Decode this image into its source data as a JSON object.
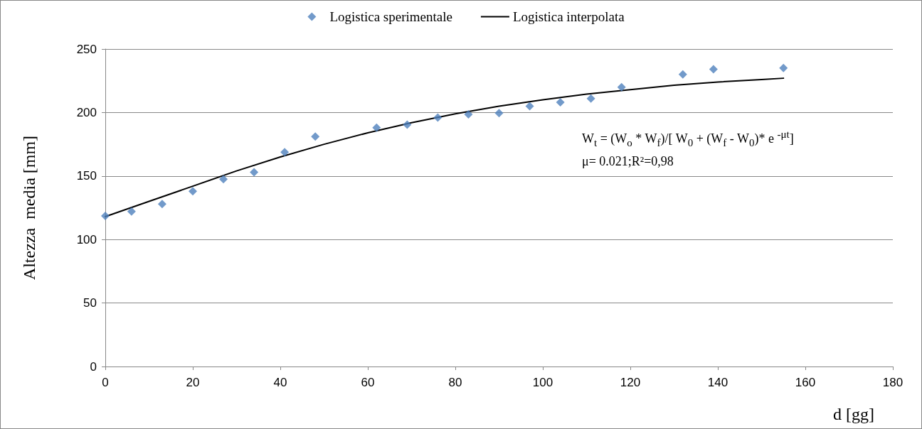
{
  "chart_data": {
    "type": "scatter",
    "xlabel": "d [gg]",
    "ylabel": "Altezza  media [mm]",
    "xlim": [
      0,
      180
    ],
    "xticks": [
      0,
      20,
      40,
      60,
      80,
      100,
      120,
      140,
      160,
      180
    ],
    "ylim": [
      0,
      250
    ],
    "yticks": [
      0,
      50,
      100,
      150,
      200,
      250
    ],
    "grid": "y",
    "legend": "top",
    "marker": "diamond",
    "series": [
      {
        "name": "Logistica sperimentale",
        "color": "#4f81bd",
        "x": [
          0,
          6,
          13,
          20,
          27,
          34,
          41,
          48,
          62,
          69,
          76,
          83,
          90,
          97,
          104,
          111,
          118,
          132,
          139,
          155
        ],
        "values": [
          118.6,
          122,
          128,
          138,
          147.5,
          153,
          168.7,
          181,
          188,
          190.5,
          196,
          198.5,
          199.5,
          205,
          208,
          211,
          220,
          230,
          234,
          235
        ]
      },
      {
        "name": "Logistica interpolata",
        "type": "line",
        "color": "#000000",
        "marker": "none",
        "line_style": "solid",
        "x": [
          0,
          10,
          20,
          30,
          40,
          50,
          60,
          70,
          80,
          90,
          100,
          110,
          120,
          130,
          140,
          150,
          155
        ],
        "values": [
          118,
          130,
          142,
          154,
          165,
          175,
          184,
          192,
          199,
          205,
          210,
          214.5,
          218,
          221.5,
          224,
          226,
          227
        ]
      }
    ],
    "annotations": [
      "W$_{t}$ = (W$_{o}$ * W$_{f}$)/[ W$_{0}$ + (W$_{f}$ - W$_{0}$)* e $^{-μt}$]",
      "μ= 0.021;R²=0,98"
    ]
  }
}
